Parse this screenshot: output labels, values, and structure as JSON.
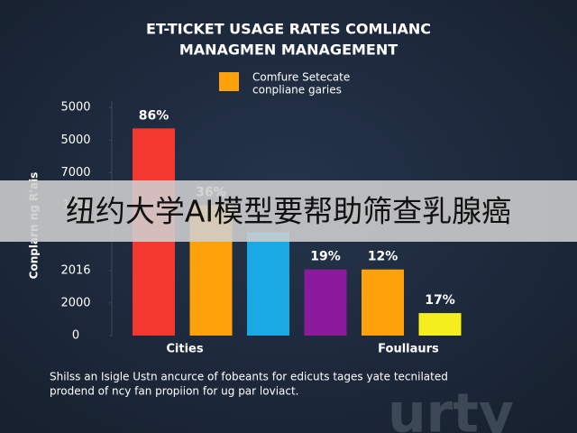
{
  "chart_data": {
    "type": "bar",
    "title": "ET-TICKET USAGE RATES COMLIANC",
    "subtitle": "MANAGMEN MANAGEMENT",
    "legend_lines": [
      "Comfure Setecate",
      "conpliane garies"
    ],
    "legend_color": "#ffa10a",
    "ylabel": "Conplarn ng R'ais",
    "values": [
      6.36,
      4.0,
      3.17,
      2.03,
      2.03,
      0.69
    ],
    "colors": [
      "#f3382f",
      "#ffa10a",
      "#1ba9e6",
      "#8c1a9c",
      "#ffa10a",
      "#f4ee1e"
    ],
    "bar_labels": [
      "86%",
      "36%",
      null,
      "19%",
      "12%",
      "17%"
    ],
    "x_labels": [
      "Cities",
      "Foullaurs"
    ],
    "ylim": [
      0,
      7.2
    ],
    "yticks": [
      0,
      {
        "value": 1,
        "label": "2000"
      },
      {
        "value": 2,
        "label": "2016"
      },
      {
        "value": 4,
        "label": "10%"
      },
      {
        "value": 5,
        "label": "7000"
      },
      {
        "value": 6,
        "label": "5000"
      },
      {
        "value": 7,
        "label": "5000"
      }
    ],
    "caption_lines": [
      "Shilss an Isigle Ustn ancurce of fobeants for edicuts tages yate tecnilated",
      "prodend of ncy fan propiion for ug par loviact."
    ],
    "overlay_text": "纽约大学AI模型要帮助筛查乳腺癌",
    "watermark": "urty"
  }
}
